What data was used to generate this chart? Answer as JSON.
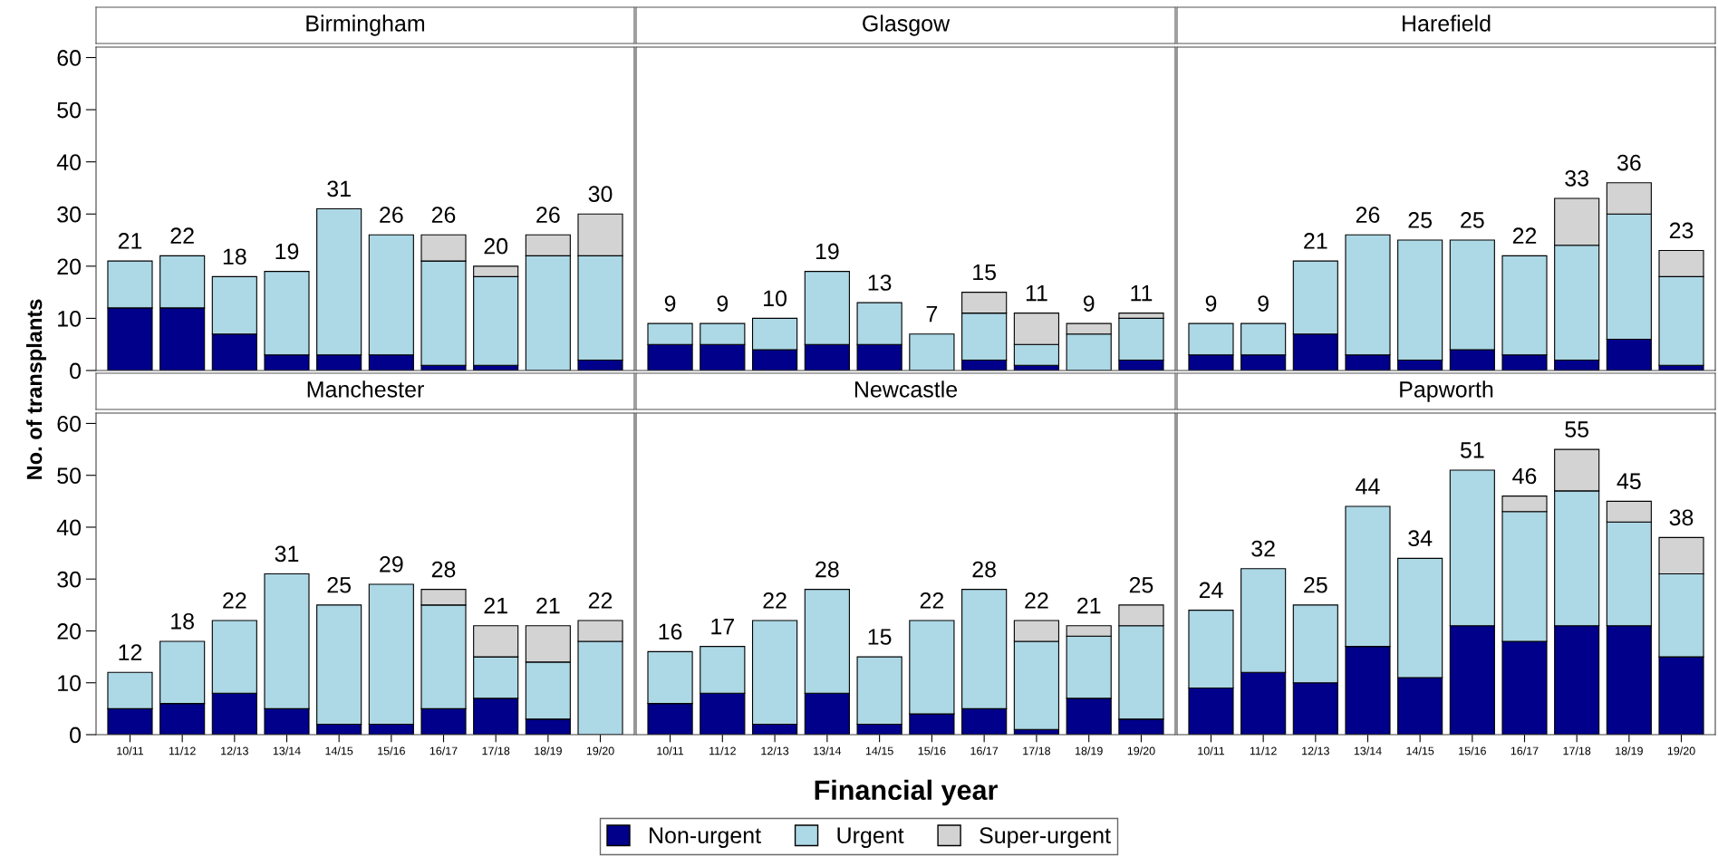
{
  "chart_data": [
    {
      "type": "bar",
      "title": "Birmingham",
      "ylabel": "No. of transplants",
      "stacked": true,
      "categories": [
        "10/11",
        "11/12",
        "12/13",
        "13/14",
        "14/15",
        "15/16",
        "16/17",
        "17/18",
        "18/19",
        "19/20"
      ],
      "ylim": [
        0,
        62
      ],
      "yticks": [
        0,
        10,
        20,
        30,
        40,
        50,
        60
      ],
      "tick_labels": "y",
      "legend": "bottom",
      "series": [
        {
          "name": "Non-urgent",
          "color": "#00008b",
          "values": [
            12,
            12,
            7,
            3,
            3,
            3,
            1,
            1,
            0,
            2
          ]
        },
        {
          "name": "Urgent",
          "color": "#add8e6",
          "values": [
            9,
            10,
            11,
            16,
            28,
            23,
            20,
            17,
            22,
            20
          ]
        },
        {
          "name": "Super-urgent",
          "color": "#d3d3d3",
          "values": [
            0,
            0,
            0,
            0,
            0,
            0,
            5,
            2,
            4,
            8
          ]
        }
      ],
      "totals": [
        "21",
        "22",
        "18",
        "19",
        "31",
        "26",
        "26",
        "20",
        "26",
        "30"
      ]
    },
    {
      "type": "bar",
      "title": "Glasgow",
      "stacked": true,
      "categories": [
        "10/11",
        "11/12",
        "12/13",
        "13/14",
        "14/15",
        "15/16",
        "16/17",
        "17/18",
        "18/19",
        "19/20"
      ],
      "ylim": [
        0,
        62
      ],
      "yticks": [
        0,
        10,
        20,
        30,
        40,
        50,
        60
      ],
      "tick_labels": false,
      "legend": "bottom",
      "series": [
        {
          "name": "Non-urgent",
          "color": "#00008b",
          "values": [
            5,
            5,
            4,
            5,
            5,
            0,
            2,
            1,
            0,
            2
          ]
        },
        {
          "name": "Urgent",
          "color": "#add8e6",
          "values": [
            4,
            4,
            6,
            14,
            8,
            7,
            9,
            4,
            7,
            8
          ]
        },
        {
          "name": "Super-urgent",
          "color": "#d3d3d3",
          "values": [
            0,
            0,
            0,
            0,
            0,
            0,
            4,
            6,
            2,
            1
          ]
        }
      ],
      "totals": [
        "9",
        "9",
        "10",
        "19",
        "13",
        "7",
        "15",
        "11",
        "9",
        "11"
      ]
    },
    {
      "type": "bar",
      "title": "Harefield",
      "stacked": true,
      "categories": [
        "10/11",
        "11/12",
        "12/13",
        "13/14",
        "14/15",
        "15/16",
        "16/17",
        "17/18",
        "18/19",
        "19/20"
      ],
      "ylim": [
        0,
        62
      ],
      "yticks": [
        0,
        10,
        20,
        30,
        40,
        50,
        60
      ],
      "tick_labels": false,
      "legend": "bottom",
      "series": [
        {
          "name": "Non-urgent",
          "color": "#00008b",
          "values": [
            3,
            3,
            7,
            3,
            2,
            4,
            3,
            2,
            6,
            1
          ]
        },
        {
          "name": "Urgent",
          "color": "#add8e6",
          "values": [
            6,
            6,
            14,
            23,
            23,
            21,
            19,
            22,
            24,
            17
          ]
        },
        {
          "name": "Super-urgent",
          "color": "#d3d3d3",
          "values": [
            0,
            0,
            0,
            0,
            0,
            0,
            0,
            9,
            6,
            5
          ]
        }
      ],
      "totals": [
        "9",
        "9",
        "21",
        "26",
        "25",
        "25",
        "22",
        "33",
        "36",
        "23"
      ]
    },
    {
      "type": "bar",
      "title": "Manchester",
      "stacked": true,
      "categories": [
        "10/11",
        "11/12",
        "12/13",
        "13/14",
        "14/15",
        "15/16",
        "16/17",
        "17/18",
        "18/19",
        "19/20"
      ],
      "ylim": [
        0,
        62
      ],
      "yticks": [
        0,
        10,
        20,
        30,
        40,
        50,
        60
      ],
      "legend": "bottom",
      "series": [
        {
          "name": "Non-urgent",
          "color": "#00008b",
          "values": [
            5,
            6,
            8,
            5,
            2,
            2,
            5,
            7,
            3,
            0
          ]
        },
        {
          "name": "Urgent",
          "color": "#add8e6",
          "values": [
            7,
            12,
            14,
            26,
            23,
            27,
            20,
            8,
            11,
            18
          ]
        },
        {
          "name": "Super-urgent",
          "color": "#d3d3d3",
          "values": [
            0,
            0,
            0,
            0,
            0,
            0,
            3,
            6,
            7,
            4
          ]
        }
      ],
      "totals": [
        "12",
        "18",
        "22",
        "31",
        "25",
        "29",
        "28",
        "21",
        "21",
        "22"
      ]
    },
    {
      "type": "bar",
      "title": "Newcastle",
      "xlabel": "Financial year",
      "stacked": true,
      "categories": [
        "10/11",
        "11/12",
        "12/13",
        "13/14",
        "14/15",
        "15/16",
        "16/17",
        "17/18",
        "18/19",
        "19/20"
      ],
      "ylim": [
        0,
        62
      ],
      "yticks": [
        0,
        10,
        20,
        30,
        40,
        50,
        60
      ],
      "tick_labels": "x",
      "legend": "bottom",
      "series": [
        {
          "name": "Non-urgent",
          "color": "#00008b",
          "values": [
            6,
            8,
            2,
            8,
            2,
            4,
            5,
            1,
            7,
            3
          ]
        },
        {
          "name": "Urgent",
          "color": "#add8e6",
          "values": [
            10,
            9,
            20,
            20,
            13,
            18,
            23,
            17,
            12,
            18
          ]
        },
        {
          "name": "Super-urgent",
          "color": "#d3d3d3",
          "values": [
            0,
            0,
            0,
            0,
            0,
            0,
            0,
            4,
            2,
            4
          ]
        }
      ],
      "totals": [
        "16",
        "17",
        "22",
        "28",
        "15",
        "22",
        "28",
        "22",
        "21",
        "25"
      ]
    },
    {
      "type": "bar",
      "title": "Papworth",
      "stacked": true,
      "categories": [
        "10/11",
        "11/12",
        "12/13",
        "13/14",
        "14/15",
        "15/16",
        "16/17",
        "17/18",
        "18/19",
        "19/20"
      ],
      "ylim": [
        0,
        62
      ],
      "yticks": [
        0,
        10,
        20,
        30,
        40,
        50,
        60
      ],
      "tick_labels": "x",
      "legend": "bottom",
      "series": [
        {
          "name": "Non-urgent",
          "color": "#00008b",
          "values": [
            9,
            12,
            10,
            17,
            11,
            21,
            18,
            21,
            21,
            15
          ]
        },
        {
          "name": "Urgent",
          "color": "#add8e6",
          "values": [
            15,
            20,
            15,
            27,
            23,
            30,
            25,
            26,
            20,
            16
          ]
        },
        {
          "name": "Super-urgent",
          "color": "#d3d3d3",
          "values": [
            0,
            0,
            0,
            0,
            0,
            0,
            3,
            8,
            4,
            7
          ]
        }
      ],
      "totals": [
        "24",
        "32",
        "25",
        "44",
        "34",
        "51",
        "46",
        "55",
        "45",
        "38"
      ]
    }
  ]
}
